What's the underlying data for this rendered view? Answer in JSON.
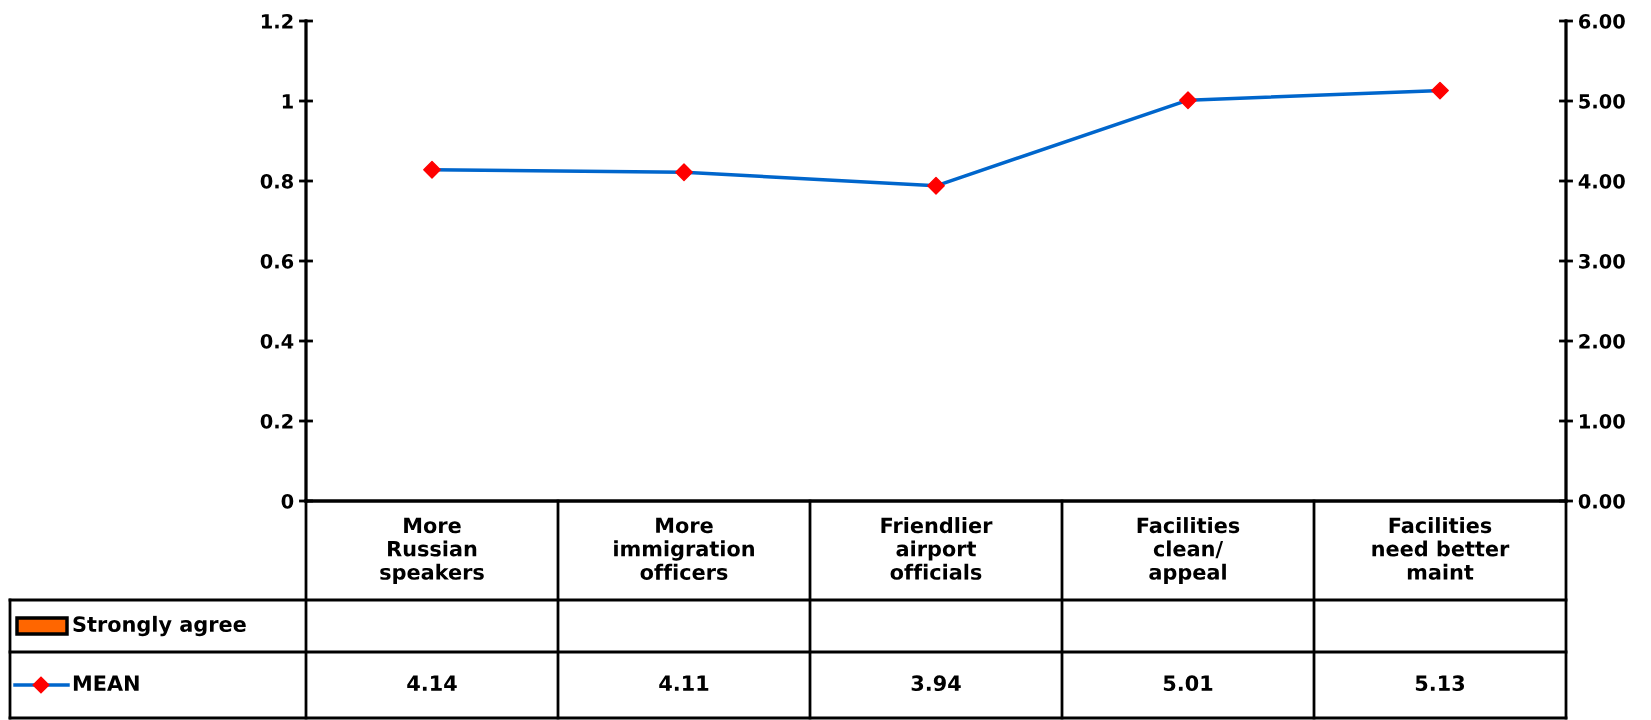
{
  "chart_data": {
    "type": "line",
    "categories": [
      "More\nRussian\nspeakers",
      "More\nimmigration\nofficers",
      "Friendlier\nairport\nofficials",
      "Facilities\nclean/\nappeal",
      "Facilities\nneed better\nmaint"
    ],
    "series": [
      {
        "name": "Strongly agree",
        "type": "bar",
        "color": "#ff6600",
        "values": [
          null,
          null,
          null,
          null,
          null
        ]
      },
      {
        "name": "MEAN",
        "axis": "y2",
        "color": "#0066cc",
        "colors": [
          "#ff0000",
          "#ff0000",
          "#ff0000",
          "#ff0000",
          "#ff0000"
        ],
        "marker": "diamond",
        "values": [
          4.14,
          4.11,
          3.94,
          5.01,
          5.13
        ]
      }
    ],
    "ylim": [
      0,
      1.2
    ],
    "yticks": [
      0,
      0.2,
      0.4,
      0.6,
      0.8,
      1,
      1.2
    ],
    "y2lim": [
      0,
      6
    ],
    "y2ticks": [
      {
        "value": 0,
        "label": "0.00"
      },
      {
        "value": 1,
        "label": "1.00"
      },
      {
        "value": 2,
        "label": "2.00"
      },
      {
        "value": 3,
        "label": "3.00"
      },
      {
        "value": 4,
        "label": "4.00"
      },
      {
        "value": 5,
        "label": "5.00"
      },
      {
        "value": 6,
        "label": "6.00"
      }
    ],
    "grid": false,
    "legend": "bottom",
    "data_labels": true
  }
}
